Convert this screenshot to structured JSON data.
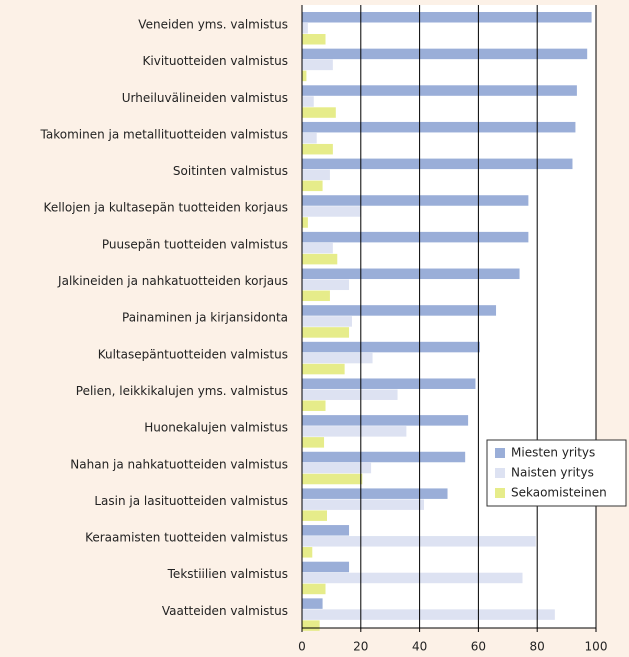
{
  "chart_data": {
    "type": "bar",
    "orientation": "horizontal",
    "categories": [
      "Veneiden yms. valmistus",
      "Kivituotteiden valmistus",
      "Urheiluvälineiden valmistus",
      "Takominen ja metallituotteiden valmistus",
      "Soitinten valmistus",
      "Kellojen ja kultasepän tuotteiden korjaus",
      "Puusepän tuotteiden valmistus",
      "Jalkineiden ja nahkatuotteiden korjaus",
      "Painaminen ja kirjansidonta",
      "Kultasepäntuotteiden valmistus",
      "Pelien, leikkikalujen yms. valmistus",
      "Huonekalujen valmistus",
      "Nahan ja nahkatuotteiden valmistus",
      "Lasin ja lasituotteiden valmistus",
      "Keraamisten tuotteiden valmistus",
      "Tekstiilien valmistus",
      "Vaatteiden valmistus"
    ],
    "series": [
      {
        "name": "Miesten yritys",
        "color": "#9aaed8",
        "values": [
          98.5,
          97,
          93.5,
          93,
          92,
          77,
          77,
          74,
          66,
          60.5,
          59,
          56.5,
          55.5,
          49.5,
          16,
          16,
          7
        ]
      },
      {
        "name": "Naisten yritys",
        "color": "#dde2f2",
        "values": [
          2,
          10.5,
          4,
          5,
          9.5,
          20,
          10.5,
          16,
          17,
          24,
          32.5,
          35.5,
          23.5,
          41.5,
          79.5,
          75,
          86
        ]
      },
      {
        "name": "Sekaomisteinen",
        "color": "#e6ec8a",
        "values": [
          8,
          1.5,
          11.5,
          10.5,
          7,
          2,
          12,
          9.5,
          16,
          14.5,
          8,
          7.5,
          20.5,
          8.5,
          3.5,
          8,
          6
        ]
      }
    ],
    "xlim": [
      0,
      100
    ],
    "xticks": [
      0,
      20,
      40,
      60,
      80,
      100
    ],
    "grid": true,
    "legend": "right"
  }
}
